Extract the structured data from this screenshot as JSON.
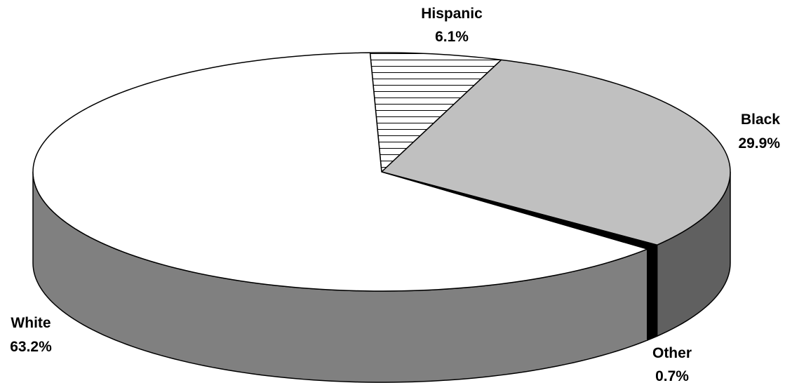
{
  "chart_data": {
    "type": "pie",
    "title": "",
    "style": "3d",
    "slices": [
      {
        "label": "Hispanic",
        "value": 6.1,
        "value_label": "6.1%",
        "fill": "hatch",
        "color": "#ffffff"
      },
      {
        "label": "Black",
        "value": 29.9,
        "value_label": "29.9%",
        "fill": "solid",
        "color": "#c0c0c0",
        "side_color": "#606060"
      },
      {
        "label": "Other",
        "value": 0.7,
        "value_label": "0.7%",
        "fill": "solid",
        "color": "#000000",
        "side_color": "#000000"
      },
      {
        "label": "White",
        "value": 63.2,
        "value_label": "63.2%",
        "fill": "solid",
        "color": "#ffffff",
        "side_color": "#808080"
      }
    ]
  }
}
